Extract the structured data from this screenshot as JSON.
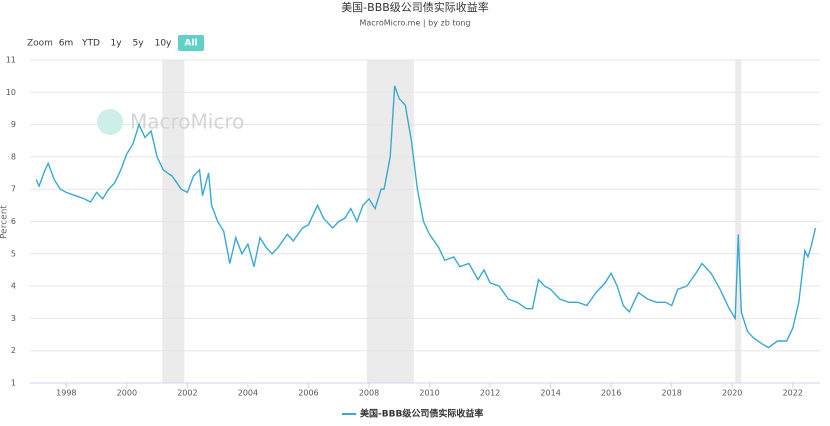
{
  "chart_data": {
    "type": "line",
    "title": "美国-BBB级公司债实际收益率",
    "subtitle": "MacroMicro.me | by zb tong",
    "watermark": "MacroMicro",
    "y_label": "Percent",
    "zoom_label": "Zoom",
    "zoom_buttons": [
      "6m",
      "YTD",
      "1y",
      "5y",
      "10y",
      "All"
    ],
    "active_zoom": "All",
    "xlim": [
      1996.8,
      2022.9
    ],
    "xticks": [
      1998,
      2000,
      2002,
      2004,
      2006,
      2008,
      2010,
      2012,
      2014,
      2016,
      2018,
      2020,
      2022
    ],
    "ylim": [
      1,
      11
    ],
    "yticks": [
      1,
      2,
      3,
      4,
      5,
      6,
      7,
      8,
      9,
      10,
      11
    ],
    "grid": true,
    "shaded_ranges": [
      [
        2001.17,
        2001.9
      ],
      [
        2007.93,
        2009.48
      ],
      [
        2020.1,
        2020.3
      ]
    ],
    "shade_color": "#ebebeb",
    "x": [
      1997.0,
      1997.1,
      1997.3,
      1997.4,
      1997.6,
      1997.8,
      1998.0,
      1998.3,
      1998.6,
      1998.8,
      1999.0,
      1999.2,
      1999.4,
      1999.6,
      1999.8,
      2000.0,
      2000.2,
      2000.4,
      2000.6,
      2000.8,
      2001.0,
      2001.2,
      2001.5,
      2001.8,
      2002.0,
      2002.2,
      2002.4,
      2002.5,
      2002.7,
      2002.8,
      2003.0,
      2003.2,
      2003.4,
      2003.6,
      2003.8,
      2004.0,
      2004.2,
      2004.4,
      2004.6,
      2004.8,
      2005.0,
      2005.3,
      2005.5,
      2005.8,
      2006.0,
      2006.3,
      2006.5,
      2006.8,
      2007.0,
      2007.2,
      2007.4,
      2007.6,
      2007.8,
      2008.0,
      2008.2,
      2008.4,
      2008.5,
      2008.7,
      2008.85,
      2009.0,
      2009.2,
      2009.4,
      2009.6,
      2009.8,
      2010.0,
      2010.3,
      2010.5,
      2010.8,
      2011.0,
      2011.3,
      2011.6,
      2011.8,
      2012.0,
      2012.3,
      2012.6,
      2012.9,
      2013.2,
      2013.4,
      2013.6,
      2013.8,
      2014.0,
      2014.3,
      2014.6,
      2014.9,
      2015.2,
      2015.5,
      2015.8,
      2016.0,
      2016.2,
      2016.4,
      2016.6,
      2016.9,
      2017.2,
      2017.5,
      2017.8,
      2018.0,
      2018.2,
      2018.5,
      2018.8,
      2019.0,
      2019.3,
      2019.6,
      2019.9,
      2020.1,
      2020.2,
      2020.3,
      2020.5,
      2020.7,
      2021.0,
      2021.2,
      2021.5,
      2021.8,
      2022.0,
      2022.2,
      2022.4,
      2022.5,
      2022.6,
      2022.75
    ],
    "series": [
      {
        "name": "美国-BBB级公司债实际收益率",
        "color": "#3aa9d1",
        "values": [
          7.3,
          7.1,
          7.6,
          7.8,
          7.3,
          7.0,
          6.9,
          6.8,
          6.7,
          6.6,
          6.9,
          6.7,
          7.0,
          7.2,
          7.6,
          8.1,
          8.4,
          9.0,
          8.6,
          8.8,
          8.0,
          7.6,
          7.4,
          7.0,
          6.9,
          7.4,
          7.6,
          6.8,
          7.5,
          6.5,
          6.0,
          5.7,
          4.7,
          5.5,
          5.0,
          5.3,
          4.6,
          5.5,
          5.2,
          5.0,
          5.2,
          5.6,
          5.4,
          5.8,
          5.9,
          6.5,
          6.1,
          5.8,
          6.0,
          6.1,
          6.4,
          6.0,
          6.5,
          6.7,
          6.4,
          7.0,
          7.0,
          8.0,
          10.2,
          9.8,
          9.6,
          8.5,
          7.0,
          6.0,
          5.6,
          5.2,
          4.8,
          4.9,
          4.6,
          4.7,
          4.2,
          4.5,
          4.1,
          4.0,
          3.6,
          3.5,
          3.3,
          3.3,
          4.2,
          4.0,
          3.9,
          3.6,
          3.5,
          3.5,
          3.4,
          3.8,
          4.1,
          4.4,
          4.0,
          3.4,
          3.2,
          3.8,
          3.6,
          3.5,
          3.5,
          3.4,
          3.9,
          4.0,
          4.4,
          4.7,
          4.4,
          3.9,
          3.3,
          3.0,
          5.6,
          3.2,
          2.6,
          2.4,
          2.2,
          2.1,
          2.3,
          2.3,
          2.7,
          3.5,
          5.1,
          4.9,
          5.2,
          5.8
        ]
      }
    ]
  }
}
